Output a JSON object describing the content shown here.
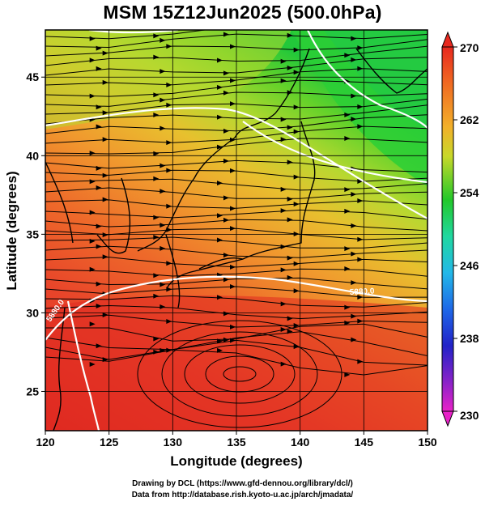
{
  "title": "MSM 15Z12Jun2025 (500.0hPa)",
  "x_axis": {
    "label": "Longitude (degrees)",
    "ticks": [
      "120",
      "125",
      "130",
      "135",
      "140",
      "145",
      "150"
    ]
  },
  "y_axis": {
    "label": "Latitude  (degrees)",
    "ticks": [
      "45",
      "40",
      "35",
      "30",
      "25"
    ]
  },
  "colorbar": {
    "labels": [
      "270",
      "262",
      "254",
      "246",
      "238",
      "230"
    ],
    "min": 230,
    "max": 270
  },
  "contour_labels": [
    "5880.0",
    "5880.0"
  ],
  "credits": {
    "line1": "Drawing by DCL (https://www.gfd-dennou.org/library/dcl/)",
    "line2": "Data from http://database.rish.kyoto-u.ac.jp/arch/jmadata/"
  },
  "colors": {
    "warm": "#e23a2a",
    "mid": "#ee8a2a",
    "cool": "#22cc22",
    "contour": "#ffffff",
    "grid": "#000000"
  }
}
